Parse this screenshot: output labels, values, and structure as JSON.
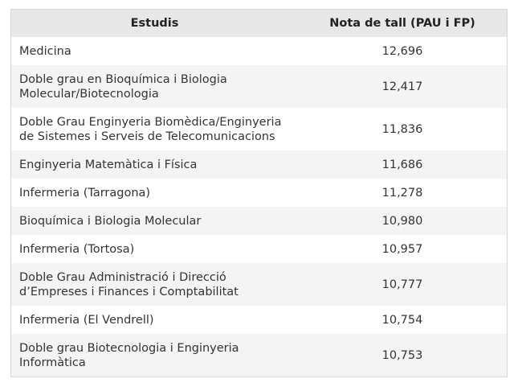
{
  "table": {
    "headers": {
      "studies": "Estudis",
      "grade": "Nota de tall (PAU i FP)"
    },
    "rows": [
      {
        "study": "Medicina",
        "grade": "12,696"
      },
      {
        "study": "Doble grau en Bioquímica i Biologia\nMolecular/Biotecnologia",
        "grade": "12,417"
      },
      {
        "study": "Doble Grau Enginyeria Biomèdica/Enginyeria\nde Sistemes i Serveis de Telecomunicacions",
        "grade": "11,836"
      },
      {
        "study": "Enginyeria Matemàtica i Física",
        "grade": "11,686"
      },
      {
        "study": "Infermeria (Tarragona)",
        "grade": "11,278"
      },
      {
        "study": "Bioquímica i Biologia Molecular",
        "grade": "10,980"
      },
      {
        "study": "Infermeria (Tortosa)",
        "grade": "10,957"
      },
      {
        "study": "Doble Grau Administració i Direcció\nd’Empreses i Finances i Comptabilitat",
        "grade": "10,777"
      },
      {
        "study": "Infermeria (El Vendrell)",
        "grade": "10,754"
      },
      {
        "study": "Doble grau Biotecnologia i Enginyeria\nInformàtica",
        "grade": "10,753"
      }
    ]
  },
  "colors": {
    "header_bg": "#e8e8e8",
    "row_alt_bg": "#f4f4f4",
    "border": "#d6d6d6"
  }
}
